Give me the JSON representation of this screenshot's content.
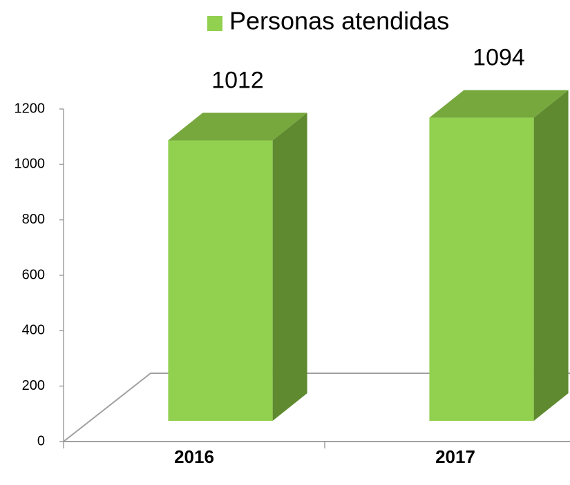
{
  "chart_data": {
    "type": "bar3d",
    "categories": [
      "2016",
      "2017"
    ],
    "series": [
      {
        "name": "Personas atendidas",
        "color": "#92d050",
        "values": [
          1012,
          1094
        ]
      }
    ],
    "ylim": [
      0,
      1200
    ],
    "yticks": [
      0,
      200,
      400,
      600,
      800,
      1000,
      1200
    ],
    "legend": "top"
  }
}
